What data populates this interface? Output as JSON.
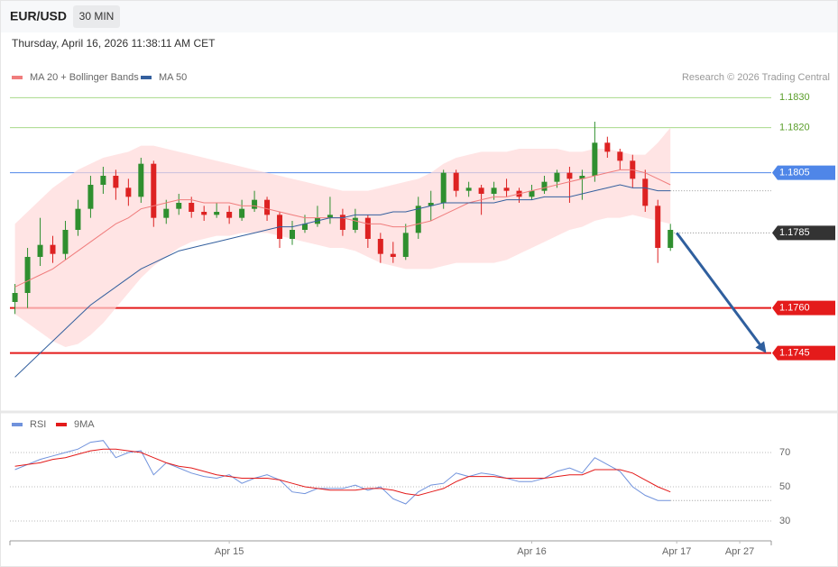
{
  "header": {
    "symbol": "EUR/USD",
    "interval": "30 MIN",
    "timestamp": "Thursday, April 16, 2026 11:38:11 AM CET"
  },
  "chart_data": [
    {
      "type": "candlestick",
      "credit": "Research © 2026 Trading Central",
      "xlim": [
        -0.4,
        60
      ],
      "ylim": [
        1.1726,
        1.1834
      ],
      "up_color": "#2f8f2f",
      "down_color": "#dd2222",
      "ohlc": [
        [
          1.1762,
          1.1768,
          1.1758,
          1.1765
        ],
        [
          1.1765,
          1.178,
          1.176,
          1.1777
        ],
        [
          1.1777,
          1.179,
          1.1774,
          1.1781
        ],
        [
          1.1781,
          1.1784,
          1.1775,
          1.1778
        ],
        [
          1.1778,
          1.1789,
          1.1776,
          1.1786
        ],
        [
          1.1786,
          1.1796,
          1.1784,
          1.1793
        ],
        [
          1.1793,
          1.1804,
          1.179,
          1.1801
        ],
        [
          1.1801,
          1.1807,
          1.1798,
          1.1804
        ],
        [
          1.1804,
          1.1806,
          1.1796,
          1.18
        ],
        [
          1.18,
          1.1803,
          1.1794,
          1.1797
        ],
        [
          1.1797,
          1.181,
          1.1795,
          1.1808
        ],
        [
          1.1808,
          1.1809,
          1.1787,
          1.179
        ],
        [
          1.179,
          1.1796,
          1.1788,
          1.1793
        ],
        [
          1.1793,
          1.1798,
          1.1791,
          1.1795
        ],
        [
          1.1795,
          1.1797,
          1.179,
          1.1792
        ],
        [
          1.1792,
          1.1794,
          1.1789,
          1.1791
        ],
        [
          1.1791,
          1.1795,
          1.179,
          1.1792
        ],
        [
          1.1792,
          1.1794,
          1.1788,
          1.179
        ],
        [
          1.179,
          1.1796,
          1.1789,
          1.1793
        ],
        [
          1.1793,
          1.1799,
          1.1792,
          1.1796
        ],
        [
          1.1796,
          1.1797,
          1.1789,
          1.1791
        ],
        [
          1.1791,
          1.1792,
          1.178,
          1.1783
        ],
        [
          1.1783,
          1.1789,
          1.1781,
          1.1786
        ],
        [
          1.1786,
          1.1791,
          1.1785,
          1.1788
        ],
        [
          1.1788,
          1.1794,
          1.1787,
          1.179
        ],
        [
          1.179,
          1.1797,
          1.1788,
          1.1791
        ],
        [
          1.1791,
          1.1793,
          1.1784,
          1.1786
        ],
        [
          1.1786,
          1.1793,
          1.1785,
          1.179
        ],
        [
          1.179,
          1.1791,
          1.178,
          1.1783
        ],
        [
          1.1783,
          1.1785,
          1.1775,
          1.1778
        ],
        [
          1.1778,
          1.1782,
          1.1775,
          1.1777
        ],
        [
          1.1777,
          1.1788,
          1.1776,
          1.1785
        ],
        [
          1.1785,
          1.1797,
          1.1783,
          1.1794
        ],
        [
          1.1794,
          1.1799,
          1.1789,
          1.1795
        ],
        [
          1.1795,
          1.1806,
          1.1793,
          1.1805
        ],
        [
          1.1805,
          1.1806,
          1.1797,
          1.1799
        ],
        [
          1.1799,
          1.1802,
          1.1797,
          1.18
        ],
        [
          1.18,
          1.1801,
          1.1791,
          1.1798
        ],
        [
          1.1798,
          1.1802,
          1.1796,
          1.18
        ],
        [
          1.18,
          1.1803,
          1.1797,
          1.1799
        ],
        [
          1.1799,
          1.18,
          1.1795,
          1.1797
        ],
        [
          1.1797,
          1.1801,
          1.1796,
          1.1799
        ],
        [
          1.1799,
          1.1804,
          1.1798,
          1.1802
        ],
        [
          1.1802,
          1.1806,
          1.18,
          1.1805
        ],
        [
          1.1805,
          1.1807,
          1.1795,
          1.1803
        ],
        [
          1.1803,
          1.1806,
          1.1796,
          1.1804
        ],
        [
          1.1804,
          1.1822,
          1.1802,
          1.1815
        ],
        [
          1.1815,
          1.1817,
          1.181,
          1.1812
        ],
        [
          1.1812,
          1.1813,
          1.1806,
          1.1809
        ],
        [
          1.1809,
          1.1811,
          1.18,
          1.1803
        ],
        [
          1.1803,
          1.1806,
          1.1792,
          1.1794
        ],
        [
          1.1794,
          1.1796,
          1.1775,
          1.178
        ],
        [
          1.178,
          1.1788,
          1.1779,
          1.1786
        ]
      ],
      "series": [
        {
          "name": "MA 20 + Bollinger Bands",
          "color": "#f07d7d",
          "band_color": "#ffd9d9",
          "values": [
            1.1767,
            1.1769,
            1.1771,
            1.1773,
            1.1776,
            1.1779,
            1.1782,
            1.1785,
            1.1788,
            1.179,
            1.1793,
            1.1794,
            1.1795,
            1.1796,
            1.1796,
            1.1795,
            1.1795,
            1.1795,
            1.1794,
            1.1794,
            1.1793,
            1.1792,
            1.1791,
            1.179,
            1.179,
            1.179,
            1.179,
            1.1789,
            1.1788,
            1.1788,
            1.1787,
            1.1787,
            1.1788,
            1.1789,
            1.1791,
            1.1793,
            1.1795,
            1.1796,
            1.1797,
            1.1797,
            1.1798,
            1.1799,
            1.18,
            1.1801,
            1.1802,
            1.1803,
            1.1804,
            1.1805,
            1.1806,
            1.1806,
            1.1805,
            1.1803,
            1.1801
          ],
          "band_upper": [
            1.1788,
            1.1792,
            1.1796,
            1.18,
            1.1803,
            1.1806,
            1.1808,
            1.181,
            1.1811,
            1.1812,
            1.1814,
            1.1814,
            1.1813,
            1.1812,
            1.1811,
            1.181,
            1.1809,
            1.1808,
            1.1807,
            1.1806,
            1.1805,
            1.1804,
            1.1803,
            1.1802,
            1.1801,
            1.18,
            1.1799,
            1.1799,
            1.1799,
            1.18,
            1.1801,
            1.1802,
            1.1803,
            1.1805,
            1.1808,
            1.181,
            1.1811,
            1.1812,
            1.1812,
            1.1812,
            1.1813,
            1.1813,
            1.1813,
            1.1813,
            1.1812,
            1.1812,
            1.1813,
            1.1813,
            1.1812,
            1.1811,
            1.1811,
            1.1815,
            1.182
          ],
          "band_lower": [
            1.1758,
            1.1755,
            1.1752,
            1.1749,
            1.1747,
            1.1748,
            1.1751,
            1.1755,
            1.176,
            1.1765,
            1.177,
            1.1774,
            1.1777,
            1.178,
            1.1782,
            1.1783,
            1.1784,
            1.1784,
            1.1785,
            1.1785,
            1.1785,
            1.1784,
            1.1783,
            1.1782,
            1.1781,
            1.178,
            1.178,
            1.1779,
            1.1777,
            1.1775,
            1.1774,
            1.1773,
            1.1773,
            1.1773,
            1.1774,
            1.1775,
            1.1775,
            1.1775,
            1.1775,
            1.1776,
            1.1778,
            1.178,
            1.1782,
            1.1784,
            1.1786,
            1.1787,
            1.1789,
            1.179,
            1.179,
            1.1791,
            1.179,
            1.1789,
            1.1788
          ]
        },
        {
          "name": "MA 50",
          "color": "#34609e",
          "values": [
            1.1737,
            1.1741,
            1.1745,
            1.1749,
            1.1753,
            1.1757,
            1.1761,
            1.1764,
            1.1767,
            1.177,
            1.1773,
            1.1775,
            1.1777,
            1.1779,
            1.178,
            1.1781,
            1.1782,
            1.1783,
            1.1784,
            1.1785,
            1.1786,
            1.1787,
            1.1787,
            1.1788,
            1.1789,
            1.179,
            1.179,
            1.1791,
            1.1791,
            1.1791,
            1.1792,
            1.1792,
            1.1793,
            1.1794,
            1.1795,
            1.1795,
            1.1795,
            1.1795,
            1.1795,
            1.1796,
            1.1796,
            1.1796,
            1.1797,
            1.1797,
            1.1797,
            1.1798,
            1.1799,
            1.18,
            1.1801,
            1.18,
            1.18,
            1.1799,
            1.1799
          ]
        }
      ],
      "levels": [
        {
          "value": 1.183,
          "label": "1.1830",
          "color": "#a8d98a",
          "text_color": "#5a9e2a",
          "style": "thin"
        },
        {
          "value": 1.182,
          "label": "1.1820",
          "color": "#a8d98a",
          "text_color": "#5a9e2a",
          "style": "thin"
        },
        {
          "value": 1.1805,
          "label": "1.1805",
          "color": "#4f86e8",
          "style": "badge"
        },
        {
          "value": 1.1785,
          "label": "1.1785",
          "color": "#333333",
          "style": "current"
        },
        {
          "value": 1.176,
          "label": "1.1760",
          "color": "#e41b1b",
          "style": "thick"
        },
        {
          "value": 1.1745,
          "label": "1.1745",
          "color": "#e41b1b",
          "style": "thick"
        }
      ],
      "arrow_color": "#2f5f9e"
    },
    {
      "type": "line",
      "xlim": [
        -0.4,
        60
      ],
      "ylim": [
        20,
        80
      ],
      "yticks": [
        30,
        50,
        70
      ],
      "xticks": [
        {
          "value": 17,
          "label": "Apr 15"
        },
        {
          "value": 41,
          "label": "Apr 16"
        },
        {
          "value": 52.5,
          "label": "Apr 17"
        },
        {
          "value": 57.5,
          "label": "Apr 27"
        }
      ],
      "series": [
        {
          "name": "RSI",
          "color": "#7092dc",
          "values": [
            60,
            63,
            66,
            68,
            70,
            72,
            76,
            77,
            67,
            70,
            71,
            57,
            64,
            61,
            58,
            56,
            55,
            57,
            52,
            55,
            57,
            54,
            47,
            46,
            49,
            49,
            49,
            51,
            48,
            50,
            43,
            40,
            47,
            51,
            52,
            58,
            56,
            58,
            57,
            55,
            53,
            53,
            55,
            59,
            61,
            58,
            67,
            63,
            59,
            50,
            45,
            42,
            42
          ]
        },
        {
          "name": "9MA",
          "color": "#e31a1a",
          "values": [
            62,
            63,
            64,
            66,
            67,
            69,
            71,
            72,
            72,
            71,
            70,
            67,
            64,
            62,
            61,
            59,
            57,
            56,
            55,
            55,
            55,
            54,
            52,
            50,
            49,
            48,
            48,
            48,
            49,
            49,
            48,
            46,
            45,
            47,
            49,
            53,
            56,
            56,
            56,
            55,
            55,
            55,
            55,
            56,
            57,
            57,
            60,
            60,
            60,
            58,
            54,
            50,
            47
          ]
        }
      ]
    }
  ]
}
